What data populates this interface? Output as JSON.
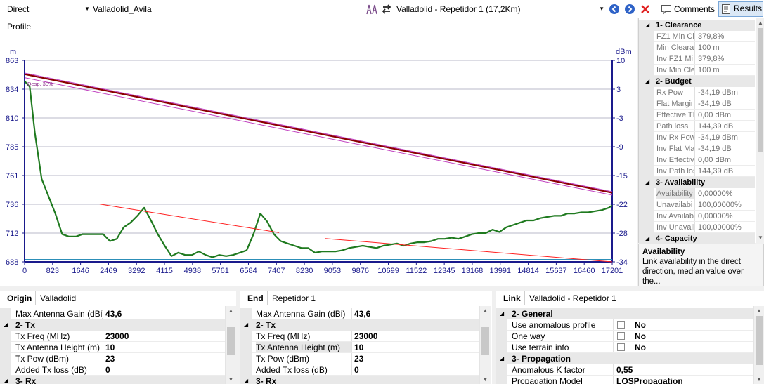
{
  "toolbar": {
    "mode": "Direct",
    "network": "Valladolid_Avila",
    "link": "Valladolid - Repetidor 1 (17,2Km)",
    "comments_label": "Comments",
    "results_label": "Results"
  },
  "profile": {
    "title": "Profile",
    "left_unit": "m",
    "right_unit": "dBm",
    "fresnel_label": "Desp. 30%",
    "left_ticks": [
      "863",
      "834",
      "810",
      "785",
      "761",
      "736",
      "712",
      "688"
    ],
    "right_ticks": [
      "10",
      "3",
      "-3",
      "-9",
      "-15",
      "-22",
      "-28",
      "-34"
    ],
    "x_ticks": [
      "0",
      "823",
      "1646",
      "2469",
      "3292",
      "4115",
      "4938",
      "5761",
      "6584",
      "7407",
      "8230",
      "9053",
      "9876",
      "10699",
      "11522",
      "12345",
      "13168",
      "13991",
      "14814",
      "15637",
      "16460",
      "17201"
    ],
    "colors": {
      "terrain": "#1f7a1f",
      "los": "#8b0000",
      "fresnel": "#c040c0",
      "signal": "#ff2020",
      "ground": "#2c8fb8",
      "axis": "#1a1a8c"
    }
  },
  "chart_data": {
    "type": "line",
    "xlabel": "",
    "ylabel": "m",
    "y2label": "dBm",
    "xlim": [
      0,
      17201
    ],
    "ylim": [
      688,
      863
    ],
    "y2lim": [
      -34,
      10
    ],
    "series": [
      {
        "axis": "left",
        "x": [
          0,
          150,
          300,
          500,
          700,
          900,
          1100,
          1300,
          1500,
          1700,
          1900,
          2100,
          2300,
          2500,
          2700,
          2900,
          3100,
          3300,
          3500,
          3700,
          3900,
          4100,
          4300,
          4500,
          4700,
          4900,
          5100,
          5300,
          5500,
          5700,
          5900,
          6100,
          6300,
          6500,
          6700,
          6900,
          7100,
          7300,
          7500,
          7700,
          7900,
          8100,
          8300,
          8500,
          8700,
          8900,
          9100,
          9300,
          9500,
          9700,
          9900,
          10100,
          10300,
          10500,
          10700,
          10900,
          11100,
          11300,
          11500,
          11700,
          11900,
          12100,
          12300,
          12500,
          12700,
          12900,
          13100,
          13300,
          13500,
          13700,
          13900,
          14100,
          14300,
          14500,
          14700,
          14900,
          15100,
          15300,
          15500,
          15700,
          15900,
          16100,
          16300,
          16500,
          16700,
          16900,
          17100,
          17201
        ],
        "values": [
          845,
          840,
          800,
          760,
          745,
          730,
          712,
          710,
          710,
          712,
          712,
          712,
          712,
          706,
          708,
          718,
          722,
          728,
          735,
          724,
          712,
          702,
          693,
          696,
          694,
          694,
          697,
          694,
          692,
          694,
          693,
          694,
          696,
          698,
          712,
          730,
          723,
          712,
          706,
          704,
          702,
          700,
          700,
          696,
          697,
          697,
          697,
          698,
          700,
          701,
          702,
          701,
          700,
          702,
          703,
          704,
          702,
          704,
          705,
          705,
          706,
          708,
          708,
          709,
          708,
          710,
          712,
          713,
          713,
          716,
          714,
          718,
          720,
          722,
          724,
          724,
          726,
          727,
          728,
          728,
          730,
          730,
          731,
          731,
          732,
          733,
          735,
          737
        ]
      },
      {
        "axis": "left",
        "x": [
          0,
          17201
        ],
        "values": [
          851,
          748
        ]
      },
      {
        "axis": "left",
        "x": [
          0,
          17201
        ],
        "values": [
          852,
          749
        ]
      },
      {
        "axis": "left",
        "x": [
          0,
          17201
        ],
        "values": [
          848,
          746
        ]
      },
      {
        "axis": "right",
        "x": [
          2200,
          7450
        ],
        "values": [
          -21.4,
          -27.6
        ]
      },
      {
        "axis": "right",
        "x": [
          8800,
          17201
        ],
        "values": [
          -28.9,
          -34
        ]
      }
    ]
  },
  "results": {
    "categories": [
      {
        "label": "1- Clearance",
        "rows": [
          {
            "k": "FZ1 Min Cl",
            "v": "379,8%"
          },
          {
            "k": "Min Cleara",
            "v": "100 m"
          },
          {
            "k": "Inv FZ1 Mi",
            "v": "379,8%"
          },
          {
            "k": "Inv Min Cle",
            "v": "100 m"
          }
        ]
      },
      {
        "label": "2- Budget",
        "rows": [
          {
            "k": "Rx Pow",
            "v": "-34,19 dBm"
          },
          {
            "k": "Flat Margin",
            "v": "-34,19 dB"
          },
          {
            "k": "Effective TI",
            "v": "0,00 dBm"
          },
          {
            "k": "Path loss",
            "v": "144,39 dB"
          },
          {
            "k": "Inv Rx Pow",
            "v": "-34,19 dBm"
          },
          {
            "k": "Inv Flat Ma",
            "v": "-34,19 dB"
          },
          {
            "k": "Inv Effectiv",
            "v": "0,00 dBm"
          },
          {
            "k": "Inv Path los",
            "v": "144,39 dB"
          }
        ]
      },
      {
        "label": "3- Availability",
        "rows": [
          {
            "k": "Availability",
            "v": "0,00000%"
          },
          {
            "k": "Unavailabi",
            "v": "100,00000%"
          },
          {
            "k": "Inv Availab",
            "v": "0,00000%"
          },
          {
            "k": "Inv Unavail",
            "v": "100,00000%"
          }
        ]
      },
      {
        "label": "4- Capacity",
        "rows": []
      }
    ]
  },
  "description": {
    "title": "Availability",
    "text": "Link availability in the direct direction, median value over the..."
  },
  "origin": {
    "tag": "Origin",
    "name": "Valladolid",
    "max_gain_k": "Max Antenna Gain (dBi)",
    "max_gain_v": "43,6",
    "tx_cat": "2- Tx",
    "rows": [
      {
        "k": "Tx Freq (MHz)",
        "v": "23000"
      },
      {
        "k": "Tx Antenna Height (m)",
        "v": "10"
      },
      {
        "k": "Tx Pow (dBm)",
        "v": "23"
      },
      {
        "k": "Added Tx loss (dB)",
        "v": "0"
      }
    ],
    "next_cat": "3- Rx"
  },
  "end": {
    "tag": "End",
    "name": "Repetidor 1",
    "max_gain_k": "Max Antenna Gain (dBi)",
    "max_gain_v": "43,6",
    "tx_cat": "2- Tx",
    "rows": [
      {
        "k": "Tx Freq (MHz)",
        "v": "23000"
      },
      {
        "k": "Tx Antenna Height (m)",
        "v": "10"
      },
      {
        "k": "Tx Pow (dBm)",
        "v": "23"
      },
      {
        "k": "Added Tx loss (dB)",
        "v": "0"
      }
    ],
    "next_cat": "3- Rx"
  },
  "linkp": {
    "tag": "Link",
    "name": "Valladolid - Repetidor 1",
    "general_cat": "2- General",
    "rows": [
      {
        "k": "Use anomalous profile",
        "v": "No"
      },
      {
        "k": "One way",
        "v": "No"
      },
      {
        "k": "Use terrain info",
        "v": "No"
      }
    ],
    "prop_cat": "3- Propagation",
    "k_factor_k": "Anomalous K factor",
    "k_factor_v": "0,55",
    "model_k": "Propagation Model",
    "model_v": "LOSPropagation"
  }
}
